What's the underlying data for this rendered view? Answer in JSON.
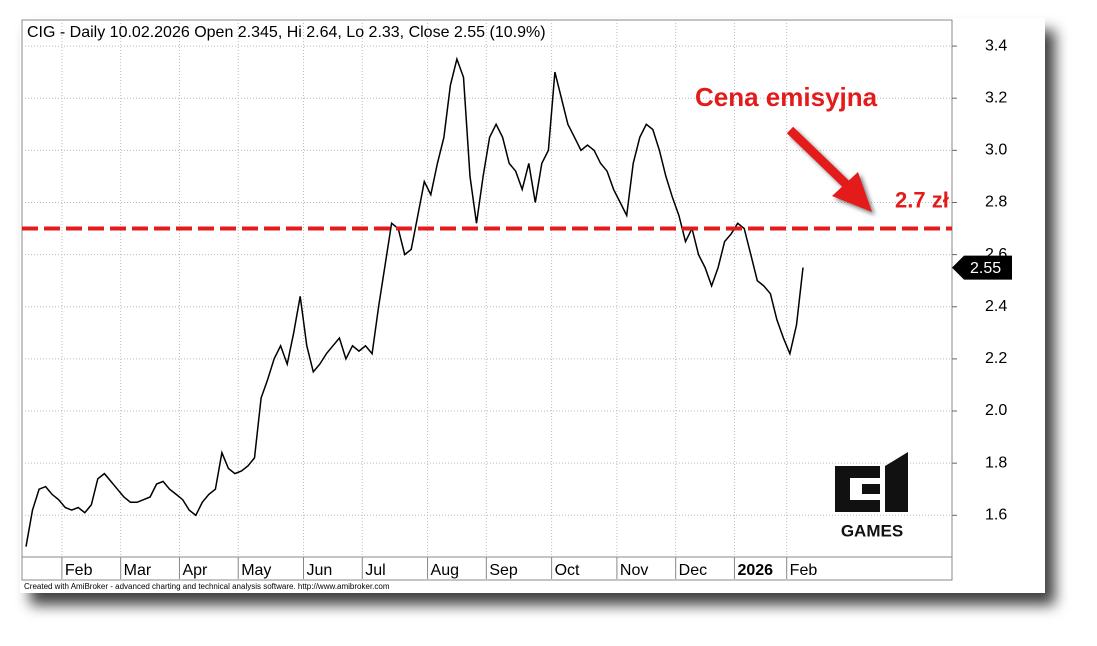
{
  "chart_data": {
    "type": "line",
    "title": "CIG - Daily 10.02.2026 Open 2.345, Hi 2.64, Lo 2.33, Close 2.55 (10.9%)",
    "categories": [
      null,
      null,
      null,
      null,
      null,
      null,
      "Feb",
      null,
      null,
      null,
      null,
      null,
      null,
      null,
      null,
      "Mar",
      null,
      null,
      null,
      null,
      null,
      null,
      null,
      null,
      "Apr",
      null,
      null,
      null,
      null,
      null,
      null,
      null,
      null,
      "May",
      null,
      null,
      null,
      null,
      null,
      null,
      null,
      null,
      null,
      "Jun",
      null,
      null,
      null,
      null,
      null,
      null,
      null,
      null,
      "Jul",
      null,
      null,
      null,
      null,
      null,
      null,
      null,
      null,
      null,
      "Aug",
      null,
      null,
      null,
      null,
      null,
      null,
      null,
      null,
      "Sep",
      null,
      null,
      null,
      null,
      null,
      null,
      null,
      null,
      null,
      "Oct",
      null,
      null,
      null,
      null,
      null,
      null,
      null,
      null,
      null,
      "Nov",
      null,
      null,
      null,
      null,
      null,
      null,
      null,
      null,
      "Dec",
      null,
      null,
      null,
      null,
      null,
      null,
      null,
      null,
      "2026",
      null,
      null,
      null,
      null,
      null,
      null,
      null,
      "Feb",
      null,
      null
    ],
    "values": [
      1.48,
      1.62,
      1.7,
      1.71,
      1.68,
      1.66,
      1.63,
      1.62,
      1.63,
      1.61,
      1.64,
      1.74,
      1.76,
      1.73,
      1.7,
      1.67,
      1.65,
      1.65,
      1.66,
      1.67,
      1.72,
      1.73,
      1.7,
      1.68,
      1.66,
      1.62,
      1.6,
      1.65,
      1.68,
      1.7,
      1.84,
      1.78,
      1.76,
      1.77,
      1.79,
      1.82,
      2.05,
      2.12,
      2.2,
      2.25,
      2.18,
      2.3,
      2.44,
      2.25,
      2.15,
      2.18,
      2.22,
      2.25,
      2.28,
      2.2,
      2.25,
      2.23,
      2.25,
      2.22,
      2.4,
      2.56,
      2.72,
      2.7,
      2.6,
      2.62,
      2.75,
      2.88,
      2.83,
      2.95,
      3.05,
      3.25,
      3.35,
      3.28,
      2.9,
      2.72,
      2.9,
      3.05,
      3.1,
      3.05,
      2.95,
      2.92,
      2.85,
      2.95,
      2.8,
      2.95,
      3.0,
      3.3,
      3.2,
      3.1,
      3.05,
      3.0,
      3.02,
      3.0,
      2.95,
      2.92,
      2.85,
      2.8,
      2.75,
      2.95,
      3.05,
      3.1,
      3.08,
      3.0,
      2.9,
      2.82,
      2.75,
      2.65,
      2.7,
      2.6,
      2.55,
      2.48,
      2.55,
      2.65,
      2.68,
      2.72,
      2.7,
      2.6,
      2.5,
      2.48,
      2.45,
      2.35,
      2.28,
      2.22,
      2.33,
      2.55
    ],
    "color": "#000000",
    "ylim": [
      1.44,
      3.5
    ],
    "yticks": [
      1.6,
      1.8,
      {
        "value": 2,
        "label": "2.0"
      },
      2.2,
      2.4,
      2.6,
      2.8,
      {
        "value": 3,
        "label": "3.0"
      },
      3.2,
      3.4
    ],
    "grid": true,
    "reference_line": {
      "value": 2.7,
      "label": "2.7 zł",
      "color": "#e31b1b"
    },
    "annotation": "Cena emisyjna",
    "logo": "GAMES",
    "credit": "Created with AmiBroker - advanced charting and technical analysis software. http://www.amibroker.com"
  }
}
